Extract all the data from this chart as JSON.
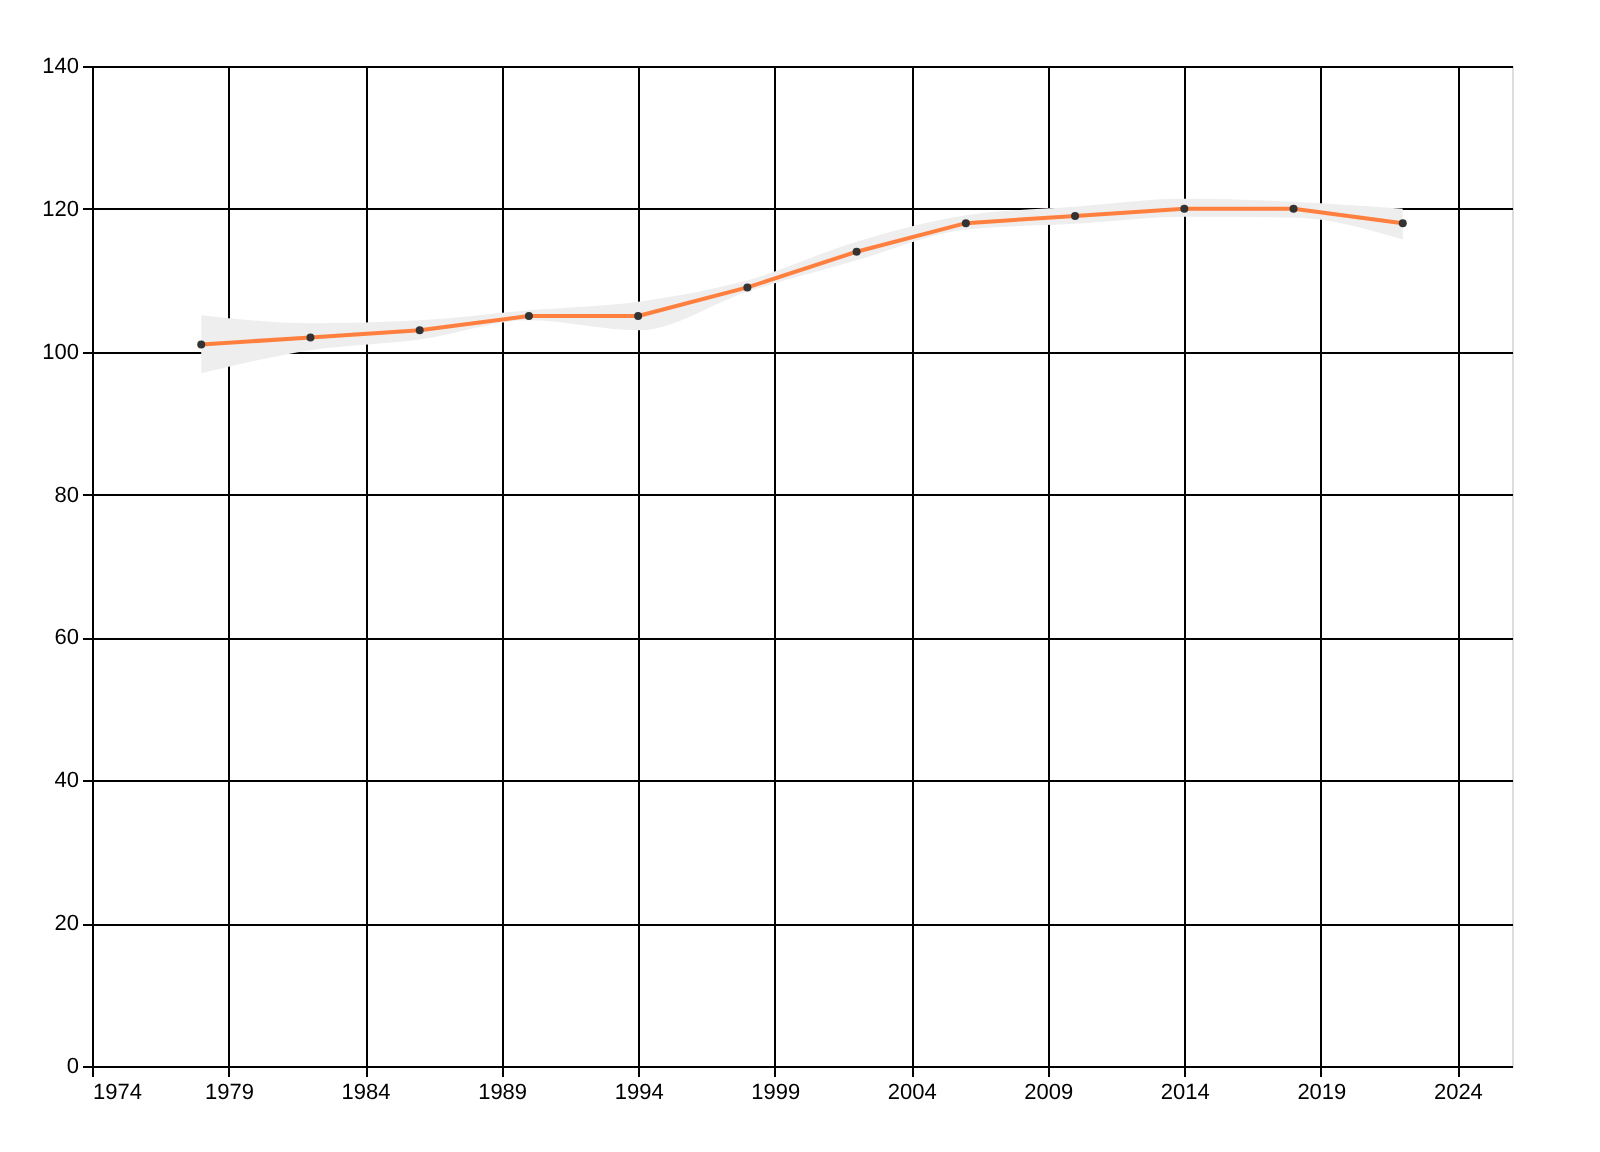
{
  "chart_data": {
    "type": "line",
    "x": [
      1978,
      1982,
      1986,
      1990,
      1994,
      1998,
      2002,
      2006,
      2010,
      2014,
      2018,
      2022
    ],
    "series": [
      {
        "color": "#ff7f3f",
        "values": [
          101,
          102,
          103,
          105,
          105,
          109,
          114,
          118,
          119,
          120,
          120,
          118
        ],
        "lower": [
          97,
          100.2,
          101.7,
          104.4,
          103,
          108.4,
          112.8,
          117.1,
          117.9,
          118.9,
          118.8,
          115.7
        ],
        "upper": [
          105.1,
          104,
          104.4,
          105.8,
          107,
          110,
          115.4,
          119.1,
          120.3,
          121.4,
          121,
          120
        ]
      }
    ],
    "xlim": [
      1974,
      2026
    ],
    "xticks": [
      1974,
      1979,
      1984,
      1989,
      1994,
      1999,
      2004,
      2009,
      2014,
      2019,
      2024
    ],
    "ylim": [
      0,
      140
    ],
    "yticks": [
      0,
      20,
      40,
      60,
      80,
      100,
      120,
      140
    ],
    "grid": true,
    "marker": "circle",
    "line_style": "solid"
  }
}
